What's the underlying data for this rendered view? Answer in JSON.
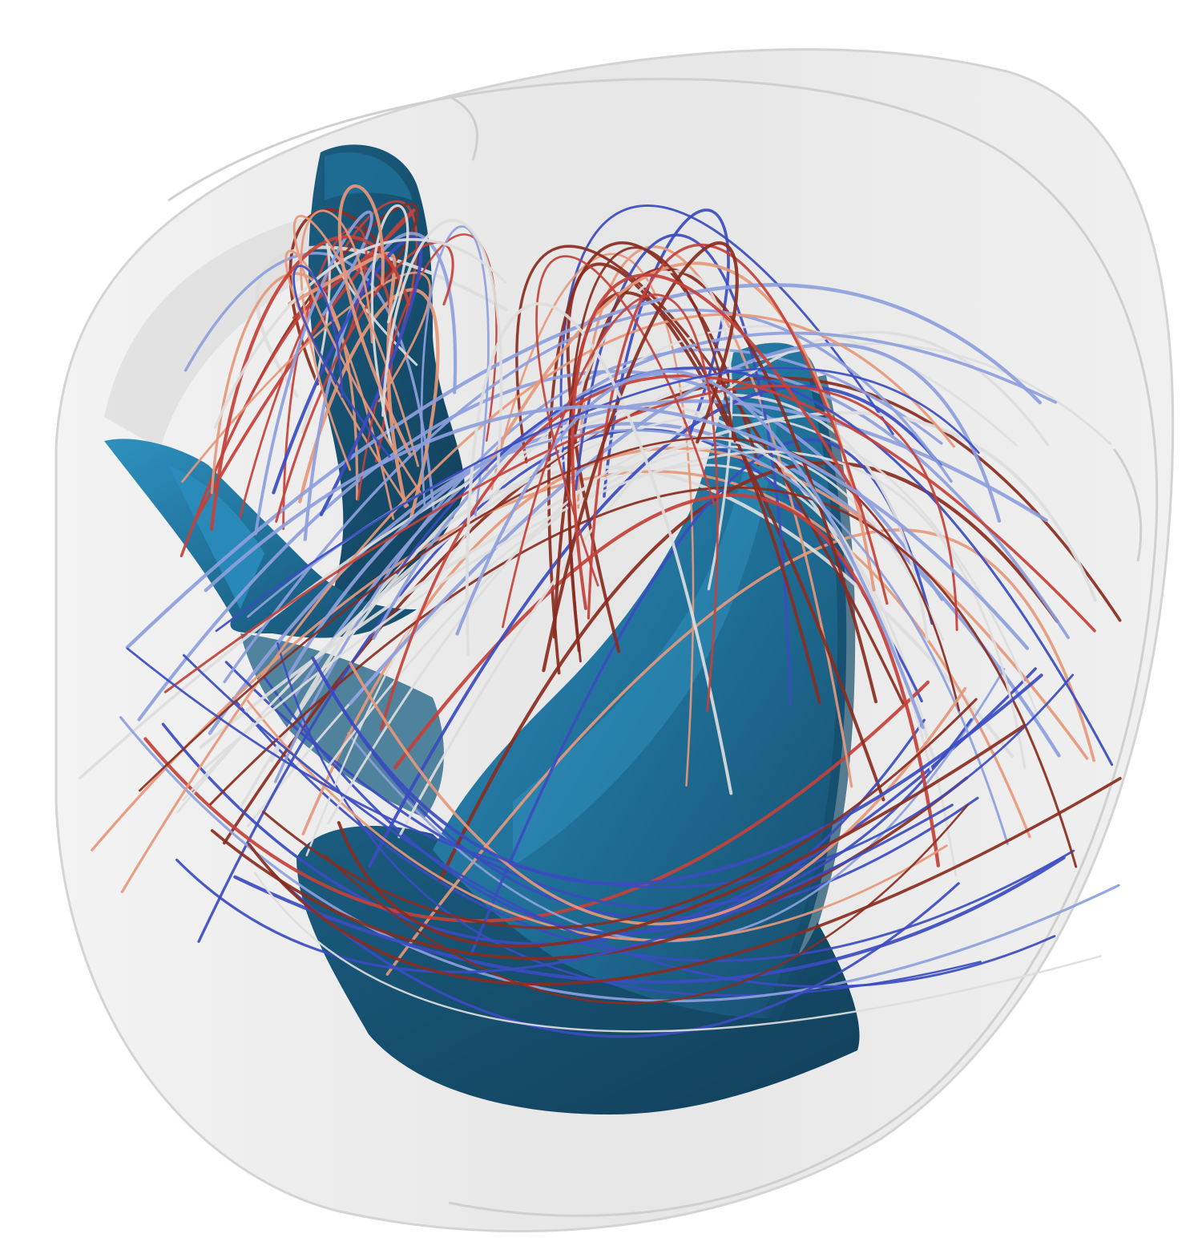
{
  "scene": {
    "background": "#ffffff",
    "housing_color": "#e4e4e4",
    "housing_edge_color": "#c9c9c9",
    "blade_color": "#1f6e96",
    "blade_highlight": "#2e91bf",
    "blade_shadow": "#164c6b",
    "streamline_colormap": [
      "#3b4cc0",
      "#8da0dc",
      "#dddddd",
      "#e6987a",
      "#c4413a",
      "#8a2c20"
    ],
    "streamline_count": 110,
    "objects": [
      "housing",
      "blade-upper-left",
      "blade-left-wing",
      "blade-main",
      "blade-bottom",
      "streamlines"
    ]
  }
}
